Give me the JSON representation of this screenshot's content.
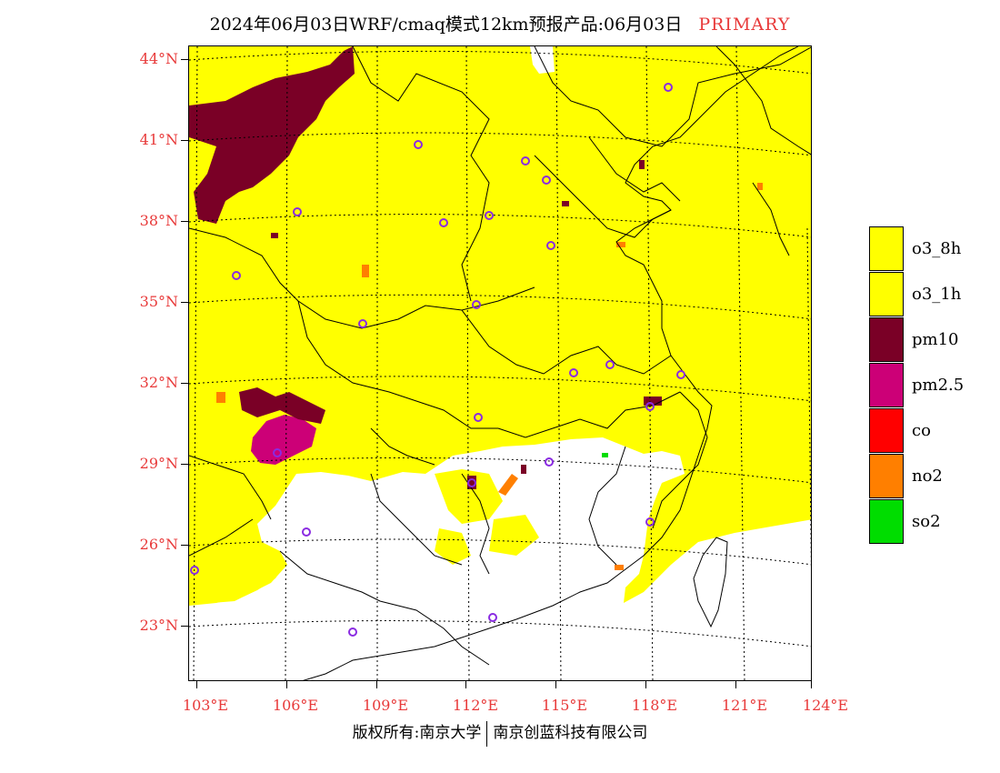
{
  "header": {
    "title": "2024年06月03日WRF/cmaq模式12km预报产品:06月03日",
    "tag": "PRIMARY"
  },
  "map": {
    "latitudes": [
      "44°N",
      "41°N",
      "38°N",
      "35°N",
      "32°N",
      "29°N",
      "26°N",
      "23°N"
    ],
    "longitudes": [
      "103°E",
      "106°E",
      "109°E",
      "112°E",
      "115°E",
      "118°E",
      "121°E",
      "124°E"
    ],
    "background_color": "#ffff00",
    "no_data_color": "#ffffff",
    "station_marker_color": "#8a2be2",
    "station_marker": "circle-icon"
  },
  "legend": {
    "items": [
      {
        "label": "o3_8h",
        "color": "#ffff00"
      },
      {
        "label": "o3_1h",
        "color": "#ffff00"
      },
      {
        "label": "pm10",
        "color": "#7a0026"
      },
      {
        "label": "pm2.5",
        "color": "#cc0077"
      },
      {
        "label": "co",
        "color": "#ff0000"
      },
      {
        "label": "no2",
        "color": "#ff7f00"
      },
      {
        "label": "so2",
        "color": "#00dd00"
      }
    ]
  },
  "footer": {
    "copyright": "版权所有:南京大学",
    "company": "南京创蓝科技有限公司"
  }
}
